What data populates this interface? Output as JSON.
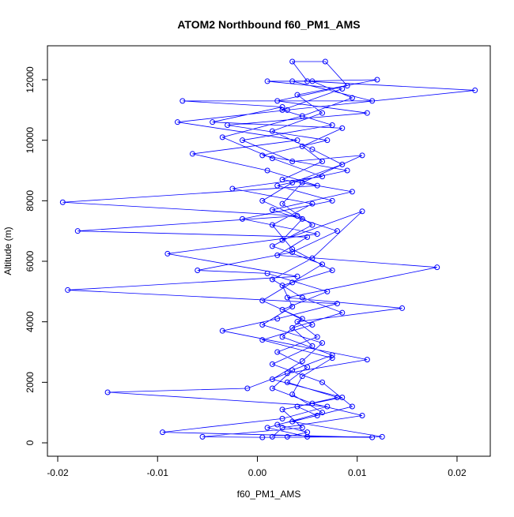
{
  "chart_data": {
    "type": "line",
    "markers": true,
    "title": "ATOM2 Northbound f60_PM1_AMS",
    "x_label": "f60_PM1_AMS",
    "y_label": "Altitude (m)",
    "series": [
      {
        "color": "#0000ff",
        "x": [
          0.003,
          0.005,
          0.002,
          0.006,
          0.004,
          0.008,
          0.003,
          0.005,
          0.002,
          0.006,
          0.004,
          0.0145,
          0.003,
          0.018,
          0.002,
          0.005,
          -0.018,
          0.004,
          -0.0195,
          0.006,
          0.001,
          -0.0065,
          0.004,
          -0.008,
          0.003,
          0.0218,
          0.005,
          0.0035,
          0.0068,
          0.009,
          0.002,
          0.011,
          -0.003,
          0.007,
          0.0005,
          0.009,
          0.002,
          0.0075,
          -0.0015,
          0.006,
          -0.009,
          0.004,
          -0.019,
          0.008,
          0.002,
          -0.0035,
          0.011,
          0.003,
          -0.001,
          -0.015,
          0.007,
          0.0025,
          -0.0095,
          0.0115,
          0.005,
          0.001,
          0.0065,
          0.0035,
          0.0045,
          0.0075,
          0.0005,
          0.0055,
          0.0025,
          0.007,
          0.001,
          -0.006,
          0.0035,
          0.008,
          0.0015,
          0.0095,
          0.0025,
          0.0065,
          0.0045,
          0.0085,
          -0.0045,
          0.0025,
          -0.0075,
          0.0115,
          0.0035,
          0.012,
          0.004,
          0.0065,
          0.0015,
          0.0055,
          0.0085,
          0.0035,
          0.0005,
          0.0045,
          0.0025,
          0.0105,
          0.0055,
          0.0015,
          0.0045,
          0.0085,
          0.0035,
          0.0055,
          0.0015,
          0.0065,
          0.0095,
          0.0035,
          0.0125,
          0.0005,
          -0.0055,
          0.0045,
          0.0025,
          0.0085,
          0.0015,
          0.0045,
          0.0065,
          0.0005,
          0.0035,
          0.0025,
          0.0075,
          0.0035,
          0.0015,
          0.0055,
          -0.0025,
          0.0065,
          0.0015,
          -0.0035,
          0.0045,
          0.0095,
          0.0055,
          0.001,
          0.0085,
          0.0025,
          0.0075,
          -0.0015,
          0.0035,
          0.0105,
          0.0045,
          0.0025,
          0.0055,
          0.0015,
          0.0065,
          0.0035,
          0.0005,
          0.0045,
          0.0025,
          0.0075,
          0.0035,
          0.0015,
          0.0055,
          0.0105,
          0.0025,
          0.0015
        ],
        "values": [
          200,
          350,
          600,
          900,
          1200,
          1500,
          2000,
          2500,
          3000,
          3500,
          4000,
          4450,
          4800,
          5800,
          6200,
          6800,
          7000,
          7500,
          7950,
          8500,
          9000,
          9550,
          10000,
          10600,
          11000,
          11650,
          11950,
          12600,
          12600,
          11800,
          11300,
          10900,
          10500,
          10000,
          9500,
          9000,
          8500,
          8000,
          7400,
          6900,
          6250,
          5500,
          5050,
          4600,
          4100,
          3700,
          2750,
          2300,
          1800,
          1670,
          1200,
          800,
          350,
          180,
          200,
          500,
          1000,
          1600,
          2200,
          2800,
          3400,
          3900,
          4400,
          5000,
          5600,
          5700,
          6300,
          7000,
          7700,
          8300,
          8700,
          9300,
          9800,
          10400,
          10600,
          11100,
          11300,
          11300,
          11950,
          12000,
          11500,
          10900,
          10300,
          9700,
          9200,
          8600,
          8000,
          7400,
          6700,
          7650,
          6100,
          5400,
          4800,
          4300,
          3800,
          3200,
          2600,
          2000,
          1200,
          700,
          200,
          180,
          200,
          500,
          1100,
          1500,
          2100,
          2700,
          3300,
          3900,
          4500,
          5200,
          5700,
          6400,
          7200,
          7900,
          8400,
          8800,
          9400,
          10100,
          10800,
          11400,
          11950,
          11950,
          11700,
          11000,
          10500,
          10000,
          9300,
          9500,
          8600,
          7900,
          7200,
          6500,
          5900,
          5300,
          4700,
          4100,
          3500,
          2900,
          2400,
          1800,
          1300,
          900,
          500,
          200
        ]
      }
    ],
    "xlim": [
      -0.02103,
      0.02333
    ],
    "xticks": [
      -0.02,
      -0.01,
      {
        "value": 0,
        "label": "0.00"
      },
      0.01,
      0.02
    ],
    "ylim": [
      -443,
      13122
    ],
    "yticks": [
      0,
      2000,
      4000,
      6000,
      8000,
      10000,
      12000
    ]
  }
}
